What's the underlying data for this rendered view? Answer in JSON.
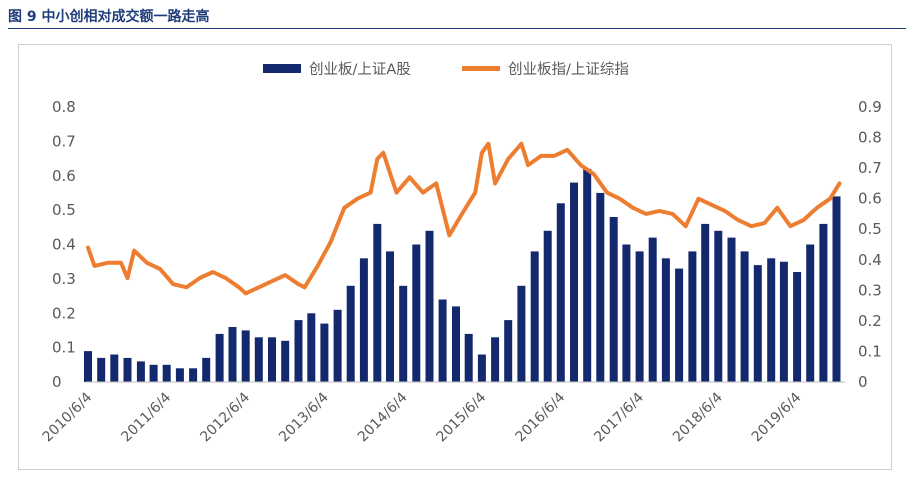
{
  "figure_title": "图 9 中小创相对成交额一路走高",
  "colors": {
    "bar": "#14286e",
    "line": "#ed7d31",
    "title": "#1f3d7a"
  },
  "chart_data": {
    "type": "bar+line",
    "x_tick_labels": [
      "2010/6/4",
      "2011/6/4",
      "2012/6/4",
      "2013/6/4",
      "2014/6/4",
      "2015/6/4",
      "2016/6/4",
      "2017/6/4",
      "2018/6/4",
      "2019/6/4"
    ],
    "x_range": [
      "2010/6/1",
      "2019/12/31"
    ],
    "y_left": {
      "ylim": [
        0,
        0.8
      ],
      "ticks": [
        "0",
        "0.1",
        "0.2",
        "0.3",
        "0.4",
        "0.5",
        "0.6",
        "0.7",
        "0.8"
      ]
    },
    "y_right": {
      "ylim": [
        0,
        0.9
      ],
      "ticks": [
        "0",
        "0.1",
        "0.2",
        "0.3",
        "0.4",
        "0.5",
        "0.6",
        "0.7",
        "0.8",
        "0.9"
      ]
    },
    "legend": {
      "position": "top-center"
    },
    "series": [
      {
        "name": "创业板/上证A股",
        "type": "bar",
        "axis": "left",
        "color": "#14286e",
        "points": [
          [
            "2010/6/1",
            0.09
          ],
          [
            "2010/8/1",
            0.07
          ],
          [
            "2010/10/1",
            0.08
          ],
          [
            "2010/12/1",
            0.07
          ],
          [
            "2011/2/1",
            0.06
          ],
          [
            "2011/4/1",
            0.05
          ],
          [
            "2011/6/1",
            0.05
          ],
          [
            "2011/8/1",
            0.04
          ],
          [
            "2011/10/1",
            0.04
          ],
          [
            "2011/12/1",
            0.07
          ],
          [
            "2012/2/1",
            0.14
          ],
          [
            "2012/4/1",
            0.16
          ],
          [
            "2012/6/1",
            0.15
          ],
          [
            "2012/8/1",
            0.13
          ],
          [
            "2012/10/1",
            0.13
          ],
          [
            "2012/12/1",
            0.12
          ],
          [
            "2013/2/1",
            0.18
          ],
          [
            "2013/4/1",
            0.2
          ],
          [
            "2013/6/1",
            0.17
          ],
          [
            "2013/8/1",
            0.21
          ],
          [
            "2013/10/1",
            0.28
          ],
          [
            "2013/12/1",
            0.36
          ],
          [
            "2014/2/1",
            0.46
          ],
          [
            "2014/4/1",
            0.38
          ],
          [
            "2014/6/1",
            0.28
          ],
          [
            "2014/8/1",
            0.4
          ],
          [
            "2014/10/1",
            0.44
          ],
          [
            "2014/12/1",
            0.24
          ],
          [
            "2015/2/1",
            0.22
          ],
          [
            "2015/4/1",
            0.14
          ],
          [
            "2015/6/1",
            0.08
          ],
          [
            "2015/8/1",
            0.13
          ],
          [
            "2015/10/1",
            0.18
          ],
          [
            "2015/12/1",
            0.28
          ],
          [
            "2016/2/1",
            0.38
          ],
          [
            "2016/4/1",
            0.44
          ],
          [
            "2016/6/1",
            0.52
          ],
          [
            "2016/8/1",
            0.58
          ],
          [
            "2016/10/1",
            0.62
          ],
          [
            "2016/12/1",
            0.55
          ],
          [
            "2017/2/1",
            0.48
          ],
          [
            "2017/4/1",
            0.4
          ],
          [
            "2017/6/1",
            0.38
          ],
          [
            "2017/8/1",
            0.42
          ],
          [
            "2017/10/1",
            0.36
          ],
          [
            "2017/12/1",
            0.33
          ],
          [
            "2018/2/1",
            0.38
          ],
          [
            "2018/4/1",
            0.46
          ],
          [
            "2018/6/1",
            0.44
          ],
          [
            "2018/8/1",
            0.42
          ],
          [
            "2018/10/1",
            0.38
          ],
          [
            "2018/12/1",
            0.34
          ],
          [
            "2019/2/1",
            0.36
          ],
          [
            "2019/4/1",
            0.35
          ],
          [
            "2019/6/1",
            0.32
          ],
          [
            "2019/8/1",
            0.4
          ],
          [
            "2019/10/1",
            0.46
          ],
          [
            "2019/12/1",
            0.54
          ]
        ]
      },
      {
        "name": "创业板指/上证综指",
        "type": "line",
        "axis": "right",
        "color": "#ed7d31",
        "points": [
          [
            "2010/6/1",
            0.44
          ],
          [
            "2010/7/1",
            0.38
          ],
          [
            "2010/9/1",
            0.39
          ],
          [
            "2010/11/1",
            0.39
          ],
          [
            "2010/12/1",
            0.34
          ],
          [
            "2011/1/1",
            0.43
          ],
          [
            "2011/3/1",
            0.39
          ],
          [
            "2011/5/1",
            0.37
          ],
          [
            "2011/7/1",
            0.32
          ],
          [
            "2011/9/1",
            0.31
          ],
          [
            "2011/11/1",
            0.34
          ],
          [
            "2012/1/1",
            0.36
          ],
          [
            "2012/3/1",
            0.34
          ],
          [
            "2012/5/1",
            0.31
          ],
          [
            "2012/6/1",
            0.29
          ],
          [
            "2012/8/1",
            0.31
          ],
          [
            "2012/10/1",
            0.33
          ],
          [
            "2012/12/1",
            0.35
          ],
          [
            "2013/2/1",
            0.32
          ],
          [
            "2013/3/1",
            0.31
          ],
          [
            "2013/5/1",
            0.38
          ],
          [
            "2013/7/1",
            0.46
          ],
          [
            "2013/9/1",
            0.57
          ],
          [
            "2013/11/1",
            0.6
          ],
          [
            "2014/1/1",
            0.62
          ],
          [
            "2014/2/1",
            0.73
          ],
          [
            "2014/3/1",
            0.75
          ],
          [
            "2014/5/1",
            0.62
          ],
          [
            "2014/7/1",
            0.67
          ],
          [
            "2014/9/1",
            0.62
          ],
          [
            "2014/11/1",
            0.65
          ],
          [
            "2015/1/1",
            0.48
          ],
          [
            "2015/3/1",
            0.55
          ],
          [
            "2015/5/1",
            0.62
          ],
          [
            "2015/6/1",
            0.75
          ],
          [
            "2015/7/1",
            0.78
          ],
          [
            "2015/8/1",
            0.65
          ],
          [
            "2015/10/1",
            0.73
          ],
          [
            "2015/12/1",
            0.78
          ],
          [
            "2016/1/1",
            0.71
          ],
          [
            "2016/3/1",
            0.74
          ],
          [
            "2016/5/1",
            0.74
          ],
          [
            "2016/7/1",
            0.76
          ],
          [
            "2016/9/1",
            0.71
          ],
          [
            "2016/11/1",
            0.68
          ],
          [
            "2017/1/1",
            0.62
          ],
          [
            "2017/3/1",
            0.6
          ],
          [
            "2017/5/1",
            0.57
          ],
          [
            "2017/7/1",
            0.55
          ],
          [
            "2017/9/1",
            0.56
          ],
          [
            "2017/11/1",
            0.55
          ],
          [
            "2018/1/1",
            0.51
          ],
          [
            "2018/3/1",
            0.6
          ],
          [
            "2018/5/1",
            0.58
          ],
          [
            "2018/7/1",
            0.56
          ],
          [
            "2018/9/1",
            0.53
          ],
          [
            "2018/11/1",
            0.51
          ],
          [
            "2019/1/1",
            0.52
          ],
          [
            "2019/3/1",
            0.57
          ],
          [
            "2019/5/1",
            0.51
          ],
          [
            "2019/7/1",
            0.53
          ],
          [
            "2019/9/1",
            0.57
          ],
          [
            "2019/11/1",
            0.6
          ],
          [
            "2019/12/15",
            0.65
          ]
        ]
      }
    ]
  }
}
